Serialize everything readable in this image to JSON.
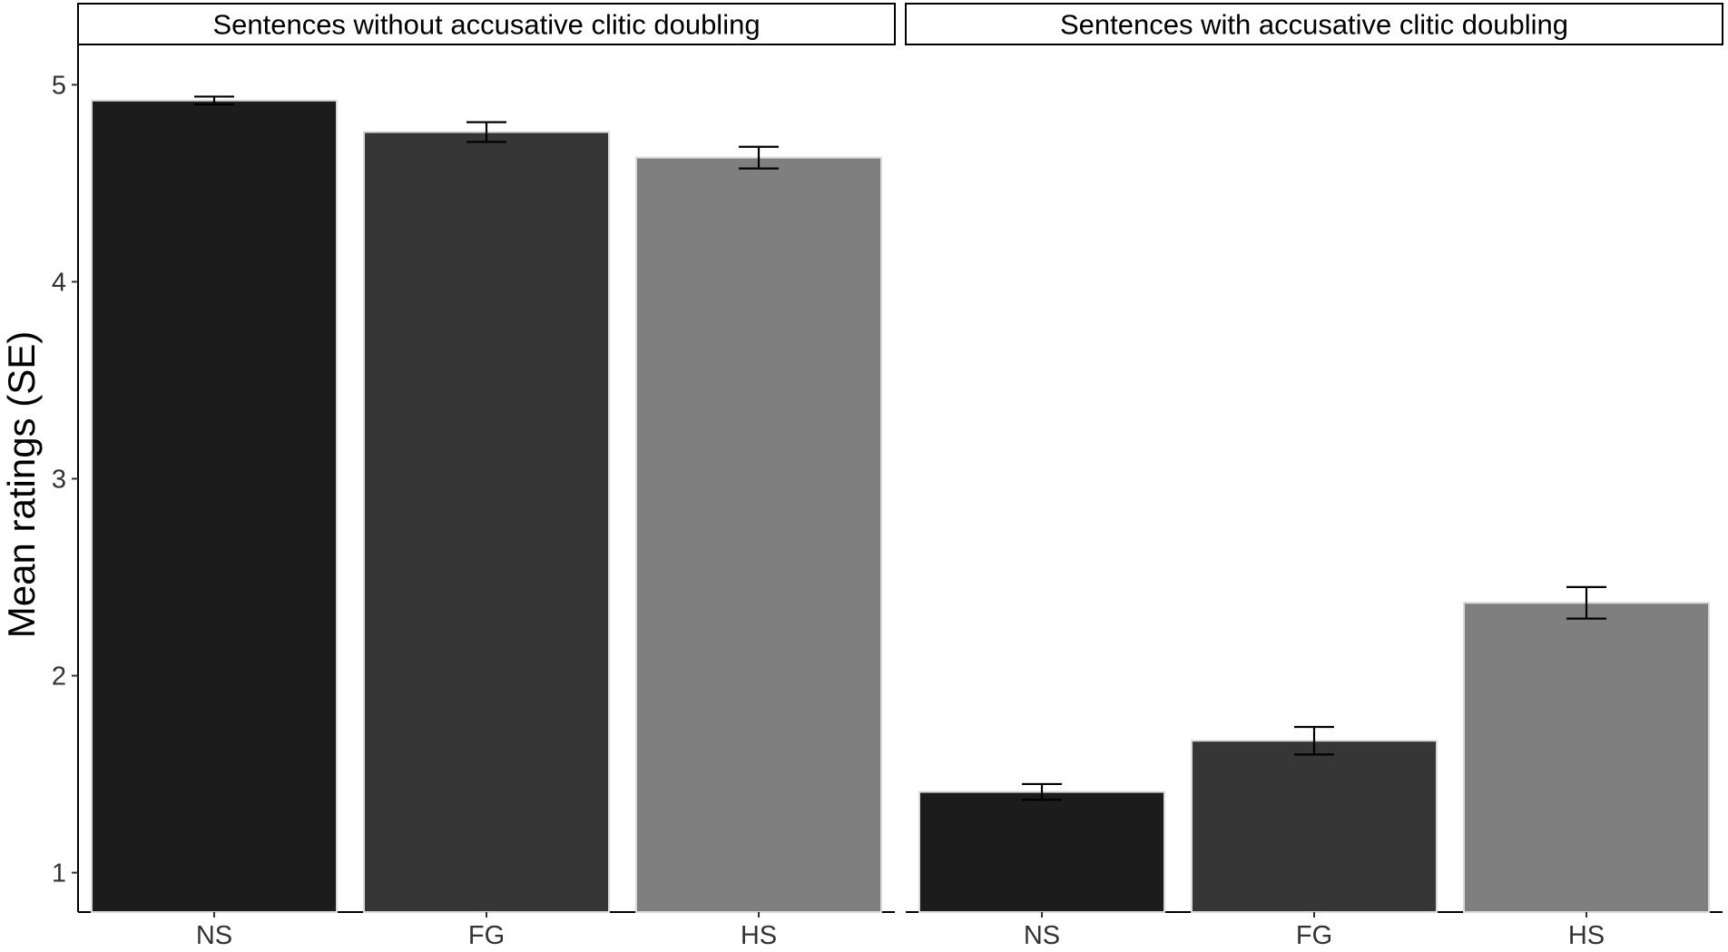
{
  "chart_data": {
    "type": "bar",
    "ylabel": "Mean ratings (SE)",
    "xlabel": "",
    "ylim": [
      0.8,
      5.2
    ],
    "yticks": [
      1,
      2,
      3,
      4,
      5
    ],
    "grid": false,
    "categories": [
      "NS",
      "FG",
      "HS"
    ],
    "category_colors": [
      "#1c1c1c",
      "#363636",
      "#7f7f7f"
    ],
    "bar_outline_color": "#d9d9d9",
    "panels": [
      {
        "title": "Sentences without accusative clitic doubling",
        "values": [
          4.92,
          4.76,
          4.63
        ],
        "se": [
          0.02,
          0.05,
          0.055
        ]
      },
      {
        "title": "Sentences with accusative clitic doubling",
        "values": [
          1.41,
          1.67,
          2.37
        ],
        "se": [
          0.04,
          0.07,
          0.08
        ]
      }
    ]
  }
}
